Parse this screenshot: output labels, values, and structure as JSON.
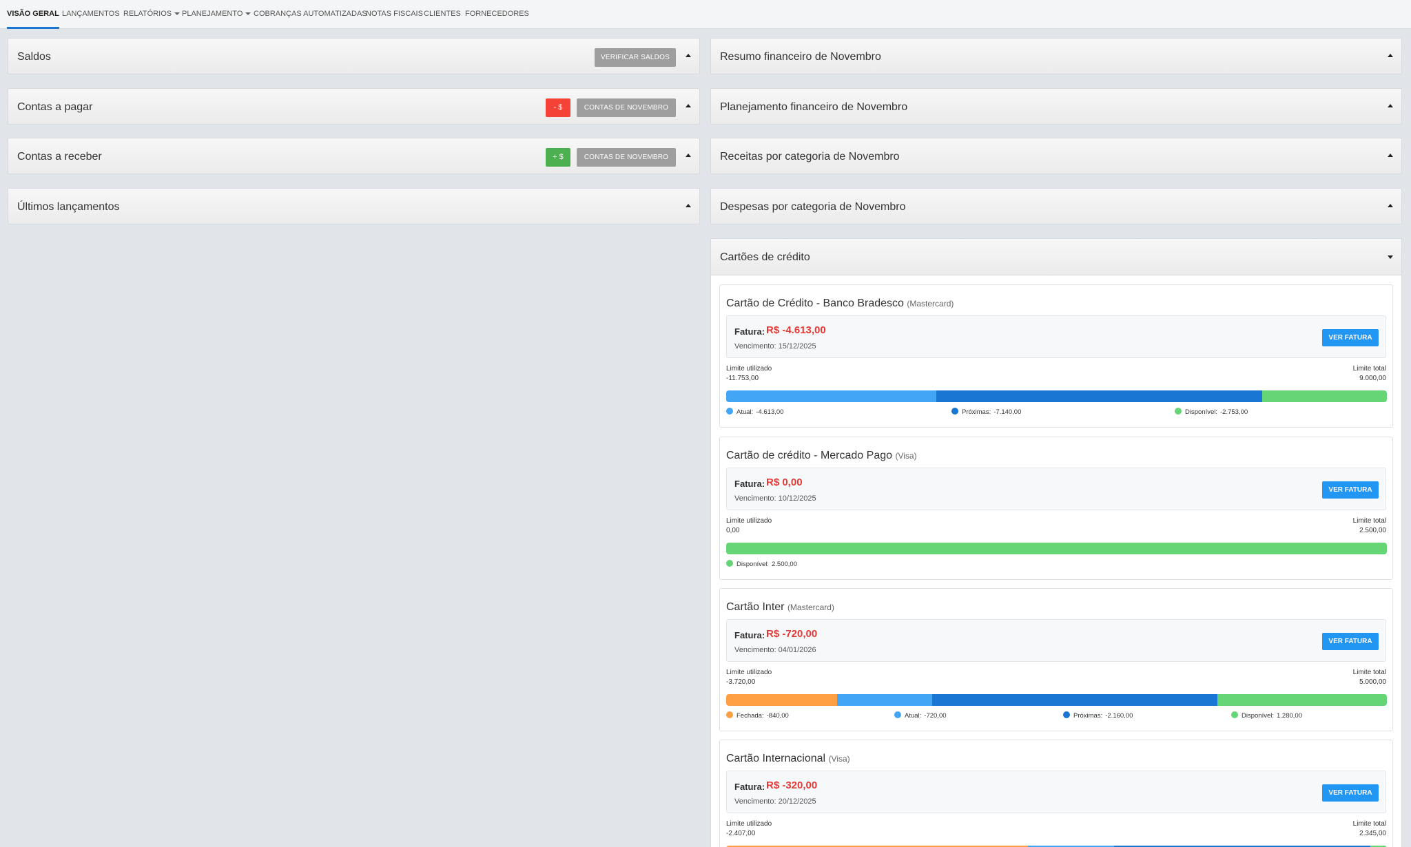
{
  "nav": {
    "tabs": [
      {
        "label": "Visão Geral"
      },
      {
        "label": "Lançamentos"
      },
      {
        "label": "Relatórios"
      },
      {
        "label": "Planejamento"
      },
      {
        "label": "Cobranças Automatizadas"
      },
      {
        "label": "Notas Fiscais"
      },
      {
        "label": "Clientes"
      },
      {
        "label": "Fornecedores"
      }
    ]
  },
  "left": {
    "saldos": {
      "title": "Saldos",
      "button": "Verificar saldos"
    },
    "pagar": {
      "title": "Contas a pagar",
      "badge": "- $",
      "button": "Contas de Novembro"
    },
    "receber": {
      "title": "Contas a receber",
      "badge": "+ $",
      "button": "Contas de Novembro"
    },
    "ultimos": {
      "title": "Últimos lançamentos"
    }
  },
  "right": {
    "resumo": {
      "title": "Resumo financeiro de Novembro"
    },
    "planejamento": {
      "title": "Planejamento financeiro de Novembro"
    },
    "receitas": {
      "title": "Receitas por categoria de Novembro"
    },
    "despesas": {
      "title": "Despesas por categoria de Novembro"
    },
    "cartoes": {
      "title": "Cartões de crédito"
    }
  },
  "colors": {
    "fechada": "#ff9f43",
    "atual": "#42a5f5",
    "proximas": "#1976d2",
    "disponivel": "#66d575"
  },
  "cards": [
    {
      "name": "Cartão de Crédito - Banco Bradesco",
      "brand": "(Mastercard)",
      "fatura_label": "Fatura:",
      "fatura": "R$ -4.613,00",
      "vencimento": "Vencimento: 15/12/2025",
      "button": "Ver fatura",
      "limite_utilizado_label": "Limite utilizado",
      "limite_utilizado": "-11.753,00",
      "limite_total_label": "Limite total",
      "limite_total": "9.000,00",
      "segments": [
        {
          "key": "atual",
          "fraction": 0.318
        },
        {
          "key": "proximas",
          "fraction": 0.493
        },
        {
          "key": "disponivel",
          "fraction": 0.189
        }
      ],
      "legend": [
        {
          "key": "atual",
          "label": "Atual:",
          "value": "-4.613,00"
        },
        {
          "key": "proximas",
          "label": "Próximas:",
          "value": "-7.140,00"
        },
        {
          "key": "disponivel",
          "label": "Disponível:",
          "value": "-2.753,00"
        }
      ]
    },
    {
      "name": "Cartão de crédito - Mercado Pago",
      "brand": "(Visa)",
      "fatura_label": "Fatura:",
      "fatura": "R$ 0,00",
      "vencimento": "Vencimento: 10/12/2025",
      "button": "Ver fatura",
      "limite_utilizado_label": "Limite utilizado",
      "limite_utilizado": "0,00",
      "limite_total_label": "Limite total",
      "limite_total": "2.500,00",
      "segments": [
        {
          "key": "disponivel",
          "fraction": 1.0
        }
      ],
      "legend": [
        {
          "key": "disponivel",
          "label": "Disponível:",
          "value": "2.500,00"
        }
      ]
    },
    {
      "name": "Cartão Inter",
      "brand": "(Mastercard)",
      "fatura_label": "Fatura:",
      "fatura": "R$ -720,00",
      "vencimento": "Vencimento: 04/01/2026",
      "button": "Ver fatura",
      "limite_utilizado_label": "Limite utilizado",
      "limite_utilizado": "-3.720,00",
      "limite_total_label": "Limite total",
      "limite_total": "5.000,00",
      "segments": [
        {
          "key": "fechada",
          "fraction": 0.168
        },
        {
          "key": "atual",
          "fraction": 0.144
        },
        {
          "key": "proximas",
          "fraction": 0.432
        },
        {
          "key": "disponivel",
          "fraction": 0.256
        }
      ],
      "legend": [
        {
          "key": "fechada",
          "label": "Fechada:",
          "value": "-840,00"
        },
        {
          "key": "atual",
          "label": "Atual:",
          "value": "-720,00"
        },
        {
          "key": "proximas",
          "label": "Próximas:",
          "value": "-2.160,00"
        },
        {
          "key": "disponivel",
          "label": "Disponível:",
          "value": "1.280,00"
        }
      ]
    },
    {
      "name": "Cartão Internacional",
      "brand": "(Visa)",
      "fatura_label": "Fatura:",
      "fatura": "R$ -320,00",
      "vencimento": "Vencimento: 20/12/2025",
      "button": "Ver fatura",
      "limite_utilizado_label": "Limite utilizado",
      "limite_utilizado": "-2.407,00",
      "limite_total_label": "Limite total",
      "limite_total": "2.345,00",
      "segments": [
        {
          "key": "fechada",
          "fraction": 0.457
        },
        {
          "key": "atual",
          "fraction": 0.13
        },
        {
          "key": "proximas",
          "fraction": 0.388
        },
        {
          "key": "disponivel",
          "fraction": 0.025
        }
      ],
      "legend": []
    }
  ]
}
